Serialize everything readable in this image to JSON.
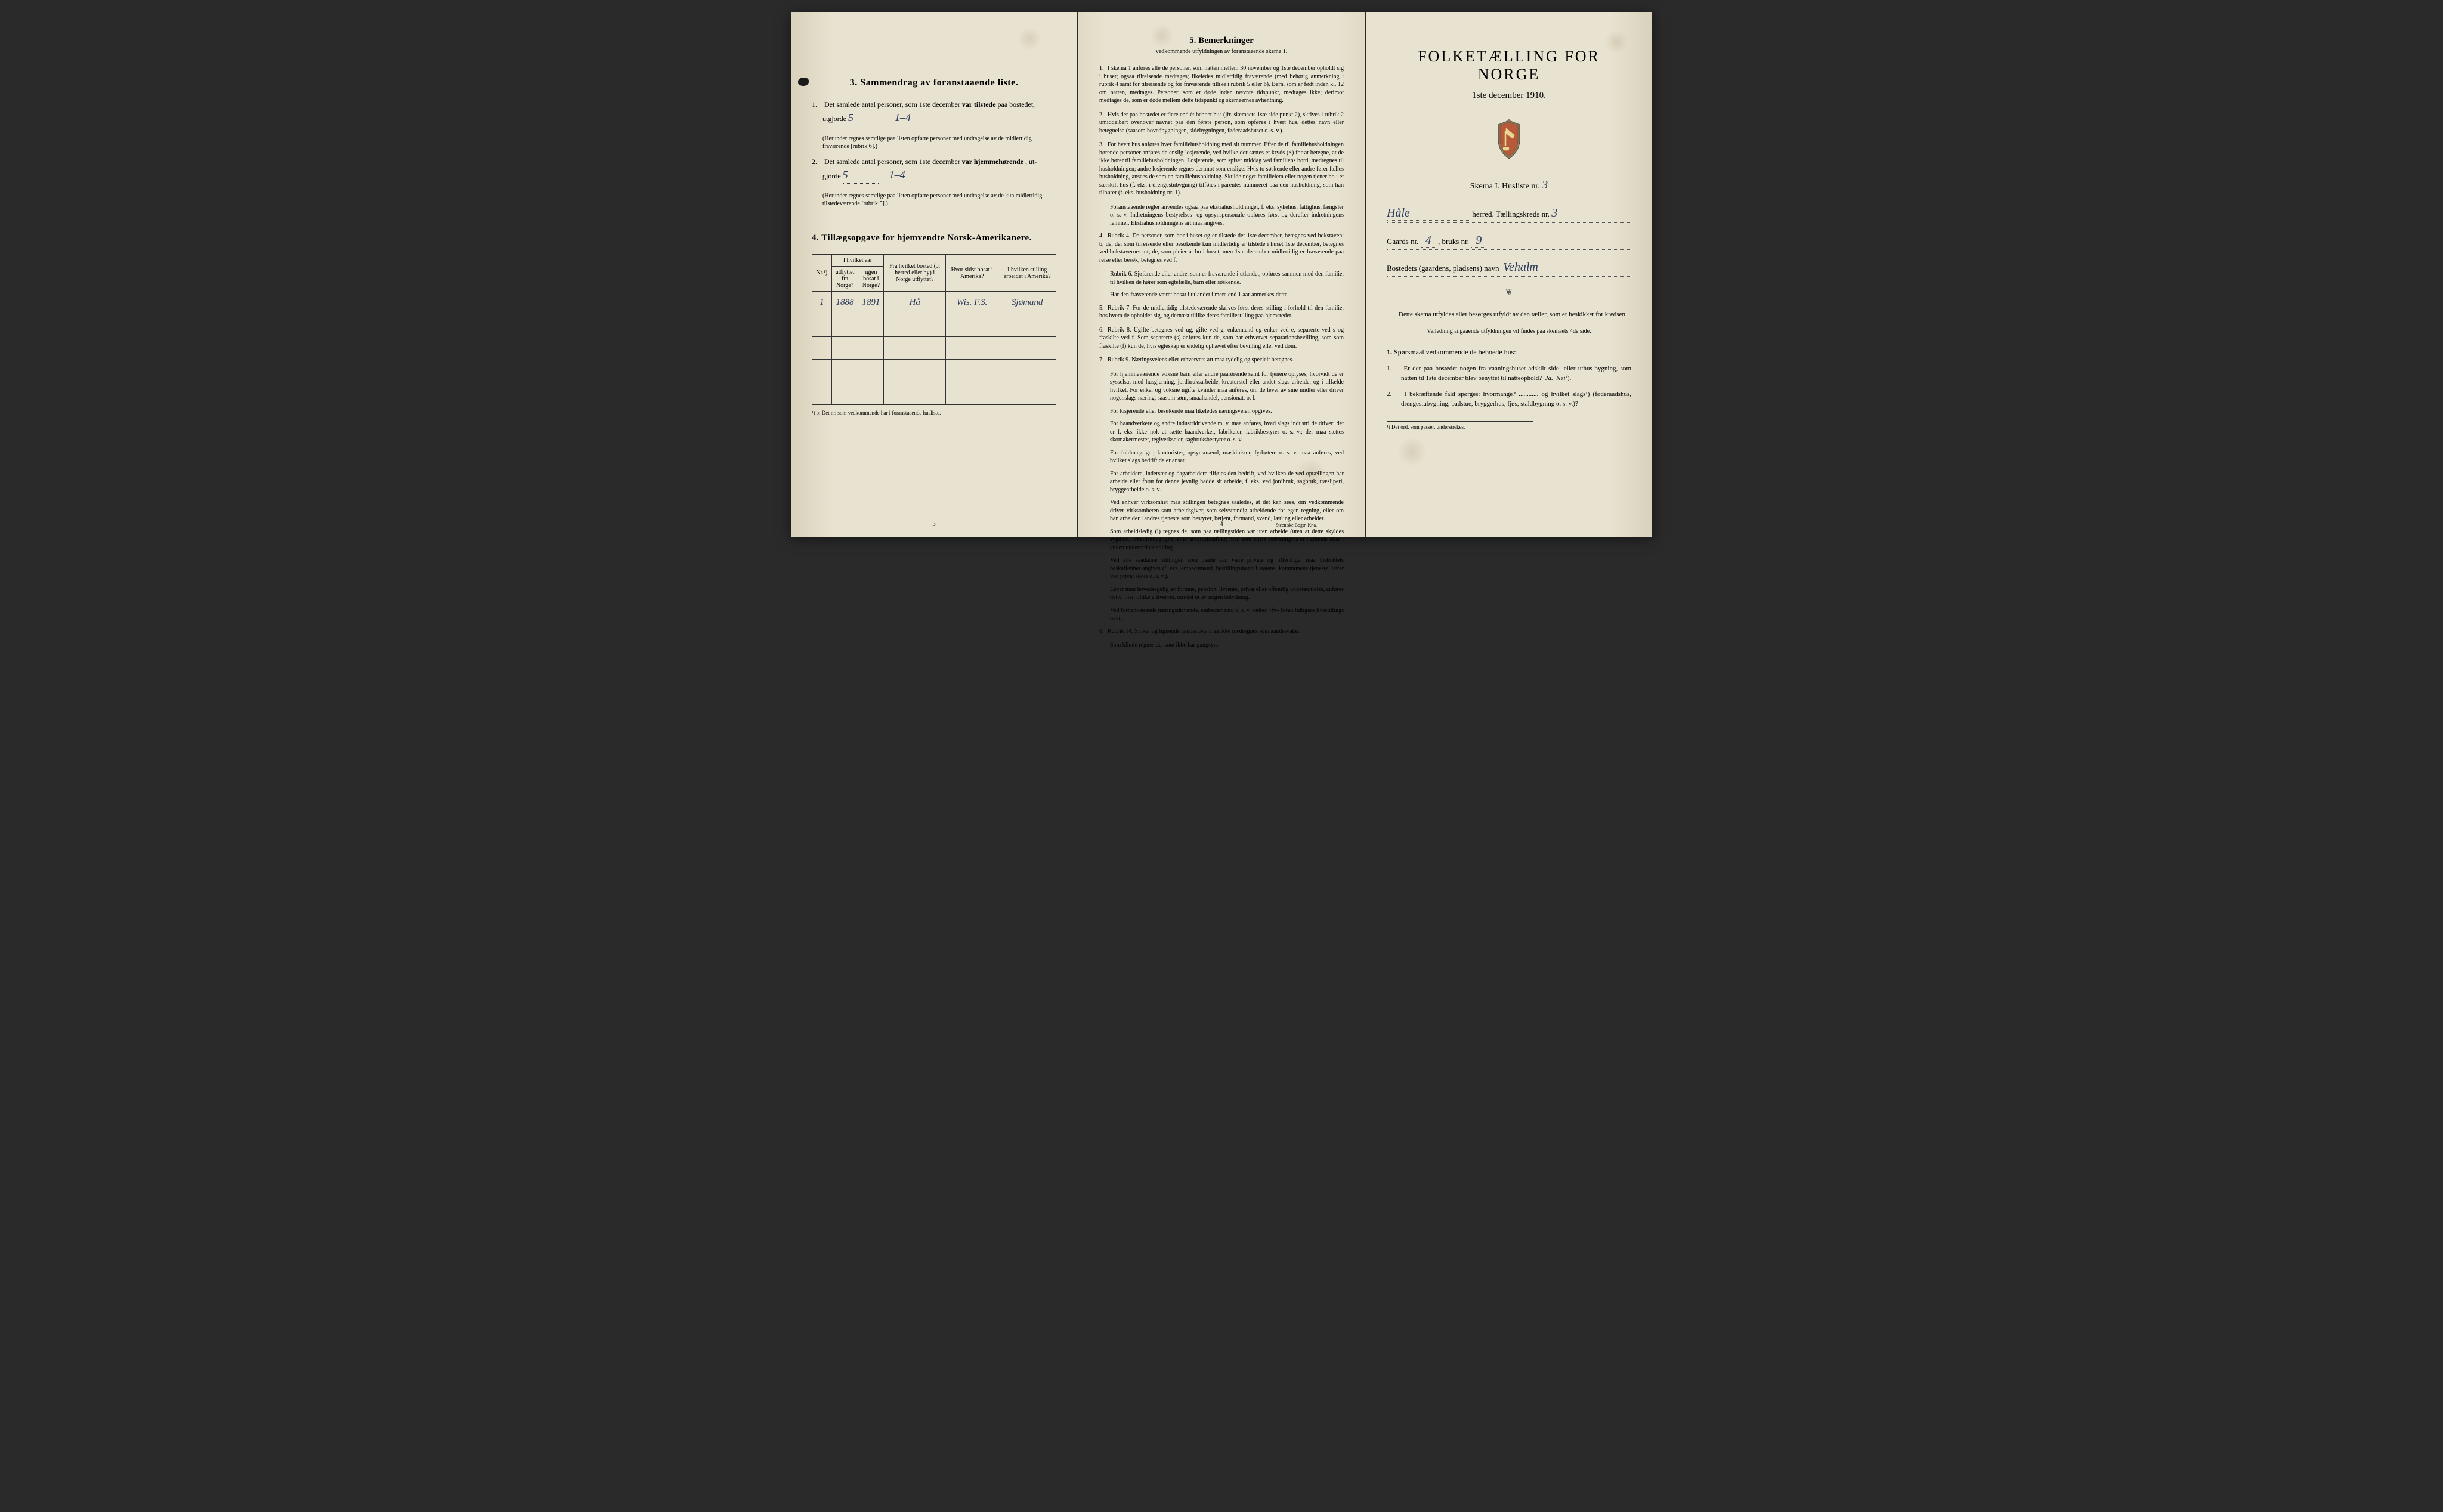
{
  "page1": {
    "section3_title": "3.   Sammendrag av foranstaaende liste.",
    "item1_text": "Det samlede antal personer, som 1ste december",
    "item1_emph": "var tilstede",
    "item1_text2": "paa bostedet,",
    "item1_line2": "utgjorde",
    "item1_hw1": "5",
    "item1_hw2": "1–4",
    "item1_note": "(Herunder regnes samtlige paa listen opførte personer med undtagelse av de midlertidig fraværende [rubrik 6].)",
    "item2_text": "Det samlede antal personer, som 1ste december",
    "item2_emph": "var hjemmehørende",
    "item2_text2": ", ut-",
    "item2_line2": "gjorde",
    "item2_hw1": "5",
    "item2_hw2": "1–4",
    "item2_note": "(Herunder regnes samtlige paa listen opførte personer med undtagelse av de kun midlertidig tilstedeværende [rubrik 5].)",
    "section4_title": "4.   Tillægsopgave for hjemvendte Norsk-Amerikanere.",
    "table": {
      "headers": {
        "nr": "Nr.¹)",
        "col2_top": "I hvilket aar",
        "col2a": "utflyttet fra Norge?",
        "col2b": "igjen bosat i Norge?",
        "col3": "Fra hvilket bosted (ɔ: herred eller by) i Norge utflyttet?",
        "col4": "Hvor sidst bosat i Amerika?",
        "col5": "I hvilken stilling arbeidet i Amerika?"
      },
      "rows": [
        {
          "nr": "1",
          "year_out": "1888",
          "year_back": "1891",
          "from": "Hå",
          "where": "Wis. F.S.",
          "occupation": "Sjømand"
        }
      ],
      "empty_rows": 4
    },
    "footnote": "¹) ɔ: Det nr. som vedkommende har i foranstaaende husliste.",
    "page_num": "3"
  },
  "page2": {
    "title": "5.   Bemerkninger",
    "subtitle": "vedkommende utfyldningen av foranstaaende skema 1.",
    "items": [
      {
        "n": "1.",
        "text": "I skema 1 anføres alle de personer, som natten mellem 30 november og 1ste december opholdt sig i huset; ogsaa tilreisende medtages; likeledes midlertidig fraværende (med behørig anmerkning i rubrik 4 samt for tilreisende og for fraværende tillike i rubrik 5 eller 6). Barn, som er født inden kl. 12 om natten, medtages. Personer, som er døde inden nævnte tidspunkt, medtages ikke; derimot medtages de, som er døde mellem dette tidspunkt og skemaernes avhentning."
      },
      {
        "n": "2.",
        "text": "Hvis der paa bostedet er flere end ét beboet hus (jfr. skemaets 1ste side punkt 2), skrives i rubrik 2 umiddelbart ovenover navnet paa den første person, som opføres i hvert hus, dettes navn eller betegnelse (saasom hovedbygningen, sidebygningen, føderaadshuset o. s. v.)."
      },
      {
        "n": "3.",
        "text": "For hvert hus anføres hver familiehusholdning med sit nummer. Efter de til familiehusholdningen hørende personer anføres de enslig losjerende, ved hvilke der sættes et kryds (×) for at betegne, at de ikke hører til familiehusholdningen. Losjerende, som spiser middag ved familiens bord, medregnes til husholdningen; andre losjerende regnes derimot som enslige. Hvis to søskende eller andre fører fælles husholdning, ansees de som en familiehusholdning. Skulde noget familielem eller nogen tjener bo i et særskilt hus (f. eks. i drengestubygning) tilføies i parentes nummeret paa den husholdning, som han tilhører (f. eks. husholdning nr. 1)."
      },
      {
        "n": "",
        "text": "Foranstaaende regler anvendes ogsaa paa ekstrahusholdninger, f. eks. sykehus, fattighus, fængsler o. s. v. Indretningens bestyrelses- og opsynspersonale opføres først og derefter indretningens lemmer. Ekstrahusholdningens art maa angives."
      },
      {
        "n": "4.",
        "text": "Rubrik 4. De personer, som bor i huset og er tilstede der 1ste december, betegnes ved bokstaven: b; de, der som tilreisende eller besøkende kun midlertidig er tilstede i huset 1ste december, betegnes ved bokstaverne: mt; de, som pleier at bo i huset, men 1ste december midlertidig er fraværende paa reise eller besøk, betegnes ved f."
      },
      {
        "n": "",
        "text": "Rubrik 6. Sjøfarende eller andre, som er fraværende i utlandet, opføres sammen med den familie, til hvilken de hører som egtefælle, barn eller søskende."
      },
      {
        "n": "",
        "text": "Har den fraværende været bosat i utlandet i mere end 1 aar anmerkes dette."
      },
      {
        "n": "5.",
        "text": "Rubrik 7. For de midlertidig tilstedeværende skrives først deres stilling i forhold til den familie, hos hvem de opholder sig, og dernæst tillike deres familiestilling paa hjemstedet."
      },
      {
        "n": "6.",
        "text": "Rubrik 8. Ugifte betegnes ved ug, gifte ved g, enkemænd og enker ved e, separerte ved s og fraskilte ved f. Som separerte (s) anføres kun de, som har erhvervet separationsbevilling, som som fraskilte (f) kun de, hvis egteskap er endelig ophævet efter bevilling eller ved dom."
      },
      {
        "n": "7.",
        "text": "Rubrik 9. Næringsveiens eller erhvervets art maa tydelig og specielt betegnes."
      },
      {
        "n": "",
        "text": "For hjemmeværende voksne barn eller andre paarørende samt for tjenere oplyses, hvorvidt de er sysselsat med husgjerning, jordbruksarbeide, kreaturstel eller andet slags arbeide, og i tilfælde hvilket. For enker og voksne ugifte kvinder maa anføres, om de lever av sine midler eller driver nogenslags næring, saasom søm, smaahandel, pensionat, o. l."
      },
      {
        "n": "",
        "text": "For losjerende eller besøkende maa likeledes næringsveien opgives."
      },
      {
        "n": "",
        "text": "For haandverkere og andre industridrivende m. v. maa anføres, hvad slags industri de driver; det er f. eks. ikke nok at sætte haandverker, fabrikeier, fabrikbestyrer o. s. v.; der maa sættes skomakermester, teglverkseier, sagbruksbestyrer o. s. v."
      },
      {
        "n": "",
        "text": "For fuldmægtiger, kontorister, opsynsmænd, maskinister, fyrbøtere o. s. v. maa anføres, ved hvilket slags bedrift de er ansat."
      },
      {
        "n": "",
        "text": "For arbeidere, inderster og dagarbeidere tilføies den bedrift, ved hvilken de ved optællingen har arbeide eller forut for denne jevnlig hadde sit arbeide, f. eks. ved jordbruk, sagbruk, træsliperi, bryggearbeide o. s. v."
      },
      {
        "n": "",
        "text": "Ved enhver virksomhet maa stillingen betegnes saaledes, at det kan sees, om vedkommende driver virksomheten som arbeidsgiver, som selvstændig arbeidende for egen regning, eller om han arbeider i andres tjeneste som bestyrer, betjent, formand, svend, lærling eller arbeider."
      },
      {
        "n": "",
        "text": "Som arbeidsledig (l) regnes de, som paa tællingstiden var uten arbeide (uten at dette skyldes sygdom, arbeidsudygtighet eller arbeidskonflikt) men som ellers sedvanligvis er i arbeide eller i anden underordnet stilling."
      },
      {
        "n": "",
        "text": "Ved alle saadanne stillinger, som baade kan være private og offentlige, maa forholdets beskaffenhet angives (f. eks. embedsmand, bestillingsmand i statens, kommunens tjeneste, lærer ved privat skole o. s. v.)."
      },
      {
        "n": "",
        "text": "Lever man hovedsagelig av formue, pension, livrente, privat eller offentlig understøttelse, anføres dette, men tillike erhvervet, om det er av nogen betydning."
      },
      {
        "n": "",
        "text": "Ved forhenværende næringsdrivende, embedsmænd o. s. v. sættes «fv» foran tidligere livsstillings navn."
      },
      {
        "n": "8.",
        "text": "Rubrik 14. Sinker og lignende aandssløve maa ikke medregnes som aandssvake."
      },
      {
        "n": "",
        "text": "Som blinde regnes de, som ikke har gangsyn."
      }
    ],
    "page_num": "4",
    "printer": "Steen'ske Bogtr. Kr.a."
  },
  "page3": {
    "main_title": "FOLKETÆLLING FOR NORGE",
    "date": "1ste december 1910.",
    "skema_label": "Skema I.   Husliste nr.",
    "husliste_nr": "3",
    "herred_hw": "Håle",
    "herred_label": "herred.   Tællingskreds nr.",
    "kreds_nr": "3",
    "gaards_label": "Gaards nr.",
    "gaards_nr": "4",
    "bruks_label": ", bruks nr.",
    "bruks_nr": "9",
    "bosted_label": "Bostedets (gaardens, pladsens) navn",
    "bosted_hw": "Vehalm",
    "instruction1": "Dette skema utfyldes eller besørges utfyldt av den tæller, som er beskikket for kredsen.",
    "instruction2": "Veiledning angaaende utfyldningen vil findes paa skemaets 4de side.",
    "q_heading": "Spørsmaal vedkommende de beboede hus:",
    "q_num": "1.",
    "q1_n": "1.",
    "q1": "Er der paa bostedet nogen fra vaaningshuset adskilt side- eller uthus-bygning, som natten til 1ste december blev benyttet til natteophold?",
    "q1_ja": "Ja.",
    "q1_nei": "Nei",
    "q1_sup": "¹).",
    "q2_n": "2.",
    "q2": "I bekræftende fald spørges: hvormange? ............ og hvilket slags¹) (føderaadshus, drengestubygning, badstue, bryggerhus, fjøs, staldbygning o. s. v.)?",
    "footnote": "¹) Det ord, som passer, understrekes."
  },
  "colors": {
    "paper": "#e8e2d0",
    "ink": "#1a1a1a",
    "handwriting": "#2a3a5a"
  }
}
